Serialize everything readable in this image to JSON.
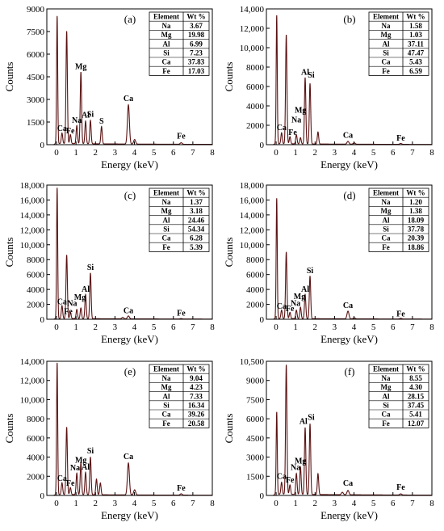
{
  "chart_data": [
    {
      "type": "line",
      "panel_label": "(a)",
      "xlabel": "Energy (keV)",
      "ylabel": "Counts",
      "xlim": [
        -0.5,
        8
      ],
      "ylim": [
        0,
        9000
      ],
      "x_ticks": [
        0,
        1,
        2,
        3,
        4,
        5,
        6,
        7,
        8
      ],
      "y_ticks": [
        0,
        1500,
        3000,
        4500,
        6000,
        7500,
        9000
      ],
      "y_tick_labels": [
        "0",
        "1500",
        "3000",
        "4500",
        "6000",
        "7500",
        "9000"
      ],
      "peaks": [
        {
          "x": 0.03,
          "y": 8500
        },
        {
          "x": 0.28,
          "y": 750
        },
        {
          "x": 0.52,
          "y": 7500
        },
        {
          "x": 0.71,
          "y": 650
        },
        {
          "x": 1.04,
          "y": 1250
        },
        {
          "x": 1.25,
          "y": 4800
        },
        {
          "x": 1.49,
          "y": 1550
        },
        {
          "x": 1.74,
          "y": 1600
        },
        {
          "x": 2.31,
          "y": 1200
        },
        {
          "x": 3.69,
          "y": 2650
        },
        {
          "x": 4.01,
          "y": 350
        },
        {
          "x": 6.4,
          "y": 150
        }
      ],
      "baseline": 80,
      "peak_labels": [
        {
          "text": "Mg",
          "x": 1.25,
          "y": 5000
        },
        {
          "text": "Ca",
          "x": 3.69,
          "y": 2900
        },
        {
          "text": "Ca",
          "x": 0.28,
          "y": 900
        },
        {
          "text": "Fe",
          "x": 0.71,
          "y": 750
        },
        {
          "text": "Na",
          "x": 1.04,
          "y": 1450
        },
        {
          "text": "Al",
          "x": 1.49,
          "y": 1800
        },
        {
          "text": "Si",
          "x": 1.74,
          "y": 1850
        },
        {
          "text": "S",
          "x": 2.31,
          "y": 1400
        },
        {
          "text": "Fe",
          "x": 6.4,
          "y": 400
        }
      ],
      "table": {
        "headers": [
          "Element",
          "Wt %"
        ],
        "rows": [
          [
            "Na",
            "3.67"
          ],
          [
            "Mg",
            "19.98"
          ],
          [
            "Al",
            "6.99"
          ],
          [
            "Si",
            "7.23"
          ],
          [
            "Ca",
            "37.83"
          ],
          [
            "Fe",
            "17.03"
          ]
        ]
      }
    },
    {
      "type": "line",
      "panel_label": "(b)",
      "xlabel": "Energy (keV)",
      "ylabel": "Counts",
      "xlim": [
        -0.5,
        8
      ],
      "ylim": [
        0,
        14000
      ],
      "x_ticks": [
        0,
        1,
        2,
        3,
        4,
        5,
        6,
        7,
        8
      ],
      "y_ticks": [
        0,
        2000,
        4000,
        6000,
        8000,
        10000,
        12000,
        14000
      ],
      "y_tick_labels": [
        "0",
        "2000",
        "4000",
        "6000",
        "8000",
        "10,000",
        "12,000",
        "14,000"
      ],
      "peaks": [
        {
          "x": 0.03,
          "y": 13300
        },
        {
          "x": 0.28,
          "y": 1200
        },
        {
          "x": 0.52,
          "y": 11300
        },
        {
          "x": 0.71,
          "y": 800
        },
        {
          "x": 1.04,
          "y": 1000
        },
        {
          "x": 1.25,
          "y": 700
        },
        {
          "x": 1.49,
          "y": 6900
        },
        {
          "x": 1.74,
          "y": 6300
        },
        {
          "x": 2.15,
          "y": 1300
        },
        {
          "x": 3.69,
          "y": 350
        },
        {
          "x": 4.01,
          "y": 200
        },
        {
          "x": 6.4,
          "y": 150
        }
      ],
      "baseline": 100,
      "peak_labels": [
        {
          "text": "Al",
          "x": 1.49,
          "y": 7200
        },
        {
          "text": "Si",
          "x": 1.8,
          "y": 6900
        },
        {
          "text": "Mg",
          "x": 1.25,
          "y": 3300
        },
        {
          "text": "Na",
          "x": 1.04,
          "y": 2300
        },
        {
          "text": "Ca",
          "x": 0.28,
          "y": 1500
        },
        {
          "text": "Fe",
          "x": 0.85,
          "y": 1000
        },
        {
          "text": "Ca",
          "x": 3.69,
          "y": 700
        },
        {
          "text": "Fe",
          "x": 6.4,
          "y": 400
        }
      ],
      "table": {
        "headers": [
          "Element",
          "Wt %"
        ],
        "rows": [
          [
            "Na",
            "1.58"
          ],
          [
            "Mg",
            "1.03"
          ],
          [
            "Al",
            "37.11"
          ],
          [
            "Si",
            "47.47"
          ],
          [
            "Ca",
            "5.43"
          ],
          [
            "Fe",
            "6.59"
          ]
        ]
      }
    },
    {
      "type": "line",
      "panel_label": "(c)",
      "xlabel": "Energy (keV)",
      "ylabel": "Counts",
      "xlim": [
        -0.5,
        8
      ],
      "ylim": [
        0,
        18000
      ],
      "x_ticks": [
        0,
        1,
        2,
        3,
        4,
        5,
        6,
        7,
        8
      ],
      "y_ticks": [
        0,
        2000,
        4000,
        6000,
        8000,
        10000,
        12000,
        14000,
        16000,
        18000
      ],
      "y_tick_labels": [
        "0",
        "2000",
        "4000",
        "6000",
        "8000",
        "10,000",
        "12,000",
        "14,000",
        "16,000",
        "18,000"
      ],
      "peaks": [
        {
          "x": 0.03,
          "y": 17600
        },
        {
          "x": 0.28,
          "y": 1800
        },
        {
          "x": 0.52,
          "y": 8600
        },
        {
          "x": 0.71,
          "y": 900
        },
        {
          "x": 1.04,
          "y": 1300
        },
        {
          "x": 1.25,
          "y": 1500
        },
        {
          "x": 1.49,
          "y": 3300
        },
        {
          "x": 1.74,
          "y": 6200
        },
        {
          "x": 3.69,
          "y": 450
        },
        {
          "x": 3.4,
          "y": 250
        },
        {
          "x": 6.4,
          "y": 120
        }
      ],
      "baseline": 100,
      "peak_labels": [
        {
          "text": "Si",
          "x": 1.74,
          "y": 6600
        },
        {
          "text": "Al",
          "x": 1.49,
          "y": 3700
        },
        {
          "text": "Mg",
          "x": 1.2,
          "y": 2600
        },
        {
          "text": "Ca",
          "x": 0.28,
          "y": 2000
        },
        {
          "text": "Na",
          "x": 0.8,
          "y": 1800
        },
        {
          "text": "Fe",
          "x": 0.6,
          "y": 700
        },
        {
          "text": "Ca",
          "x": 3.69,
          "y": 800
        },
        {
          "text": "Fe",
          "x": 6.4,
          "y": 500
        }
      ],
      "table": {
        "headers": [
          "Element",
          "Wt %"
        ],
        "rows": [
          [
            "Na",
            "1.37"
          ],
          [
            "Mg",
            "3.18"
          ],
          [
            "Al",
            "24.46"
          ],
          [
            "Si",
            "54.34"
          ],
          [
            "Ca",
            "6.28"
          ],
          [
            "Fe",
            "5.39"
          ]
        ]
      }
    },
    {
      "type": "line",
      "panel_label": "(d)",
      "xlabel": "Energy (keV)",
      "ylabel": "Counts",
      "xlim": [
        -0.5,
        8
      ],
      "ylim": [
        0,
        18000
      ],
      "x_ticks": [
        0,
        1,
        2,
        3,
        4,
        5,
        6,
        7,
        8
      ],
      "y_ticks": [
        0,
        2000,
        4000,
        6000,
        8000,
        10000,
        12000,
        14000,
        16000,
        18000
      ],
      "y_tick_labels": [
        "0",
        "2000",
        "4000",
        "6000",
        "8000",
        "10,000",
        "12,000",
        "14,000",
        "16,000",
        "18,000"
      ],
      "peaks": [
        {
          "x": 0.03,
          "y": 16200
        },
        {
          "x": 0.28,
          "y": 1200
        },
        {
          "x": 0.52,
          "y": 9000
        },
        {
          "x": 0.71,
          "y": 900
        },
        {
          "x": 1.04,
          "y": 1200
        },
        {
          "x": 1.25,
          "y": 1600
        },
        {
          "x": 1.49,
          "y": 3300
        },
        {
          "x": 1.74,
          "y": 5800
        },
        {
          "x": 3.69,
          "y": 1100
        },
        {
          "x": 4.01,
          "y": 200
        },
        {
          "x": 6.4,
          "y": 150
        }
      ],
      "baseline": 100,
      "peak_labels": [
        {
          "text": "Si",
          "x": 1.74,
          "y": 6200
        },
        {
          "text": "Al",
          "x": 1.49,
          "y": 3700
        },
        {
          "text": "Mg",
          "x": 1.2,
          "y": 2700
        },
        {
          "text": "Na",
          "x": 1.0,
          "y": 1800
        },
        {
          "text": "Ca",
          "x": 0.28,
          "y": 1400
        },
        {
          "text": "Fe",
          "x": 0.71,
          "y": 1100
        },
        {
          "text": "Ca",
          "x": 3.69,
          "y": 1500
        },
        {
          "text": "Fe",
          "x": 6.4,
          "y": 400
        }
      ],
      "table": {
        "headers": [
          "Element",
          "Wt %"
        ],
        "rows": [
          [
            "Na",
            "1.20"
          ],
          [
            "Mg",
            "1.38"
          ],
          [
            "Al",
            "18.09"
          ],
          [
            "Si",
            "37.78"
          ],
          [
            "Ca",
            "20.39"
          ],
          [
            "Fe",
            "18.86"
          ]
        ]
      }
    },
    {
      "type": "line",
      "panel_label": "(e)",
      "xlabel": "Energy (keV)",
      "ylabel": "Counts",
      "xlim": [
        -0.5,
        8
      ],
      "ylim": [
        0,
        14000
      ],
      "x_ticks": [
        0,
        1,
        2,
        3,
        4,
        5,
        6,
        7,
        8
      ],
      "y_ticks": [
        0,
        2000,
        4000,
        6000,
        8000,
        10000,
        12000,
        14000
      ],
      "y_tick_labels": [
        "0",
        "2000",
        "4000",
        "6000",
        "8000",
        "10,000",
        "12,000",
        "14,000"
      ],
      "peaks": [
        {
          "x": 0.03,
          "y": 13800
        },
        {
          "x": 0.28,
          "y": 1300
        },
        {
          "x": 0.52,
          "y": 7100
        },
        {
          "x": 0.71,
          "y": 800
        },
        {
          "x": 1.04,
          "y": 2300
        },
        {
          "x": 1.25,
          "y": 3400
        },
        {
          "x": 1.49,
          "y": 2400
        },
        {
          "x": 1.74,
          "y": 4000
        },
        {
          "x": 2.05,
          "y": 1700
        },
        {
          "x": 2.25,
          "y": 1300
        },
        {
          "x": 3.69,
          "y": 3400
        },
        {
          "x": 4.01,
          "y": 600
        },
        {
          "x": 6.4,
          "y": 200
        }
      ],
      "baseline": 100,
      "peak_labels": [
        {
          "text": "Ca",
          "x": 3.69,
          "y": 3800
        },
        {
          "text": "Mg",
          "x": 1.25,
          "y": 3400
        },
        {
          "text": "Si",
          "x": 1.74,
          "y": 4400
        },
        {
          "text": "Na",
          "x": 0.95,
          "y": 2600
        },
        {
          "text": "Al",
          "x": 1.49,
          "y": 2700
        },
        {
          "text": "Ca",
          "x": 0.28,
          "y": 1500
        },
        {
          "text": "Fe",
          "x": 0.71,
          "y": 1000
        },
        {
          "text": "Fe",
          "x": 6.4,
          "y": 500
        }
      ],
      "table": {
        "headers": [
          "Element",
          "Wt %"
        ],
        "rows": [
          [
            "Na",
            "9.04"
          ],
          [
            "Mg",
            "4.23"
          ],
          [
            "Al",
            "7.33"
          ],
          [
            "Si",
            "16.34"
          ],
          [
            "Ca",
            "39.26"
          ],
          [
            "Fe",
            "20.58"
          ]
        ]
      }
    },
    {
      "type": "line",
      "panel_label": "(f)",
      "xlabel": "Energy (keV)",
      "ylabel": "Counts",
      "xlim": [
        -0.5,
        8
      ],
      "ylim": [
        0,
        10500
      ],
      "x_ticks": [
        0,
        1,
        2,
        3,
        4,
        5,
        6,
        7,
        8
      ],
      "y_ticks": [
        0,
        1500,
        3000,
        4500,
        6000,
        7500,
        9000,
        10500
      ],
      "y_tick_labels": [
        "0",
        "1500",
        "3000",
        "4500",
        "6000",
        "7500",
        "9000",
        "10,500"
      ],
      "peaks": [
        {
          "x": 0.03,
          "y": 6500
        },
        {
          "x": 0.28,
          "y": 1000
        },
        {
          "x": 0.52,
          "y": 10200
        },
        {
          "x": 0.71,
          "y": 800
        },
        {
          "x": 1.04,
          "y": 1700
        },
        {
          "x": 1.25,
          "y": 2200
        },
        {
          "x": 1.49,
          "y": 5300
        },
        {
          "x": 1.74,
          "y": 5600
        },
        {
          "x": 2.15,
          "y": 1700
        },
        {
          "x": 3.4,
          "y": 250
        },
        {
          "x": 3.69,
          "y": 400
        },
        {
          "x": 6.4,
          "y": 150
        }
      ],
      "baseline": 100,
      "peak_labels": [
        {
          "text": "Al",
          "x": 1.4,
          "y": 5600
        },
        {
          "text": "Si",
          "x": 1.8,
          "y": 5900
        },
        {
          "text": "Mg",
          "x": 1.25,
          "y": 2500
        },
        {
          "text": "Na",
          "x": 1.0,
          "y": 2000
        },
        {
          "text": "Ca",
          "x": 0.28,
          "y": 1300
        },
        {
          "text": "Fe",
          "x": 0.71,
          "y": 1000
        },
        {
          "text": "Ca",
          "x": 3.69,
          "y": 750
        },
        {
          "text": "Fe",
          "x": 6.4,
          "y": 450
        }
      ],
      "table": {
        "headers": [
          "Element",
          "Wt %"
        ],
        "rows": [
          [
            "Na",
            "8.55"
          ],
          [
            "Mg",
            "4.30"
          ],
          [
            "Al",
            "28.15"
          ],
          [
            "Si",
            "37.45"
          ],
          [
            "Ca",
            "5.41"
          ],
          [
            "Fe",
            "12.07"
          ]
        ]
      }
    }
  ],
  "colors": {
    "line": "#5a1212",
    "axis": "#000000"
  }
}
